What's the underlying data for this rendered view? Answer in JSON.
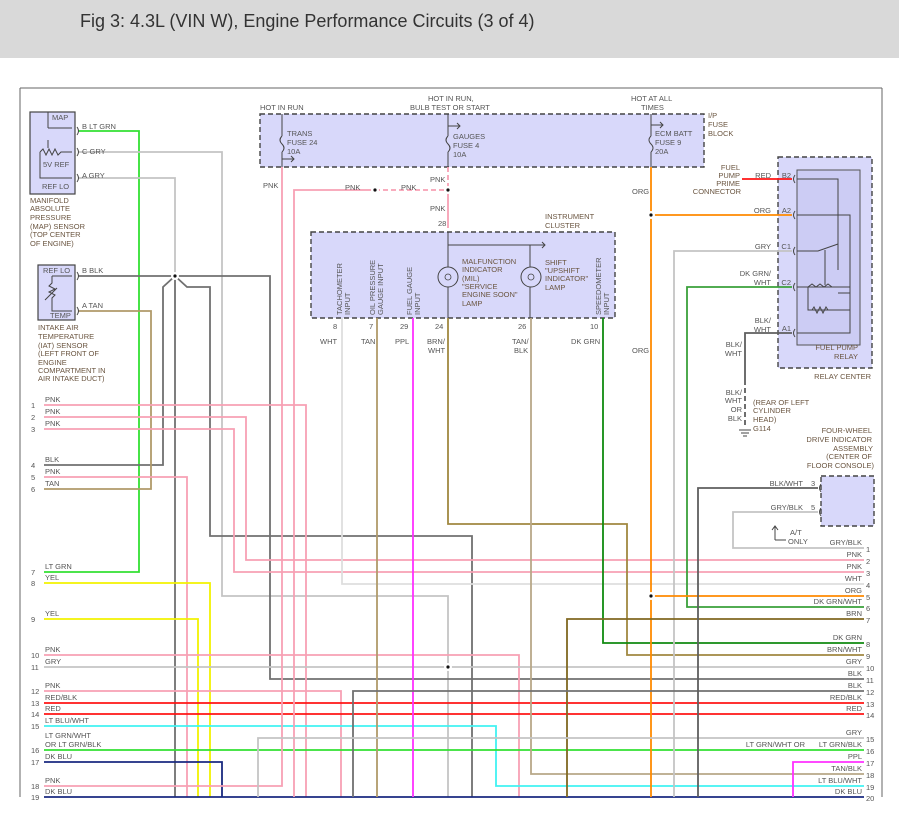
{
  "title": "Fig 3: 4.3L (VIN W), Engine Performance Circuits (3 of 4)",
  "wire_colors": {
    "PNK": "#f7a0b4",
    "LT GRN": "#33e033",
    "GRY": "#c4c4c4",
    "BLK": "#707070",
    "TAN": "#b09a6a",
    "YEL": "#f2f200",
    "RED": "#ff1414",
    "LT BLU/WHT": "#40f2f2",
    "DK BLU": "#1a2a80",
    "WHT": "#dedede",
    "PPL": "#ff30ff",
    "BRN/WHT": "#a08840",
    "TAN/BLK": "#b8a888",
    "DK GRN": "#108a10",
    "ORG": "#ff8a00",
    "DK GRN/WHT": "#3aa03a",
    "BRN": "#806820",
    "BLK/WHT": "#5e5e5e"
  },
  "fuse_block": {
    "hot_in_run": "HOT IN RUN",
    "hot_bulb_1": "HOT IN RUN,",
    "hot_bulb_2": "BULB TEST OR START",
    "hot_all_1": "HOT AT ALL",
    "hot_all_2": "TIMES",
    "name": [
      "I/P",
      "FUSE",
      "BLOCK"
    ],
    "fuses": [
      {
        "lines": [
          "TRANS",
          "FUSE 24",
          "10A"
        ]
      },
      {
        "lines": [
          "GAUGES",
          "FUSE 4",
          "10A"
        ]
      },
      {
        "lines": [
          "ECM BATT",
          "FUSE 9",
          "20A"
        ]
      }
    ]
  },
  "map_sensor": {
    "pins": {
      "map": "MAP",
      "ref5v": "5V REF",
      "reflo": "REF LO"
    },
    "wires": [
      "B  LT GRN",
      "C  GRY",
      "A  GRY"
    ],
    "name": [
      "MANIFOLD",
      "ABSOLUTE",
      "PRESSURE",
      "(MAP) SENSOR",
      "(TOP CENTER",
      "OF ENGINE)"
    ]
  },
  "iat_sensor": {
    "pins": {
      "reflo": "REF LO",
      "temp": "TEMP"
    },
    "wires": [
      "B  BLK",
      "A  TAN"
    ],
    "name": [
      "INTAKE AIR",
      "TEMPERATURE",
      "(IAT) SENSOR",
      "(LEFT FRONT OF",
      "ENGINE",
      "COMPARTMENT IN",
      "AIR INTAKE DUCT)"
    ]
  },
  "pnk_labels": [
    "PNK",
    "PNK",
    "PNK",
    "PNK",
    "PNK"
  ],
  "instrument_cluster": {
    "name": [
      "INSTRUMENT",
      "CLUSTER"
    ],
    "feed_pin": "28",
    "inputs": [
      [
        "TACHOMETER",
        "INPUT"
      ],
      [
        "OIL PRESSURE",
        "GAUGE INPUT"
      ],
      [
        "FUEL GAUGE",
        "INPUT"
      ],
      [
        "SPEEDOMETER",
        "INPUT"
      ]
    ],
    "mil": [
      "MALFUNCTION",
      "INDICATOR",
      "(MIL)",
      "\"SERVICE",
      "ENGINE SOON\"",
      "LAMP"
    ],
    "shift": [
      "SHIFT",
      "\"UPSHIFT",
      "INDICATOR\"",
      "LAMP"
    ],
    "pins": [
      "8",
      "7",
      "29",
      "24",
      "26",
      "10"
    ],
    "wire_labels": [
      "WHT",
      "TAN",
      "PPL",
      "BRN/",
      "WHT",
      "TAN/",
      "BLK",
      "DK GRN"
    ]
  },
  "org_labels": [
    "ORG",
    "ORG"
  ],
  "relay_center": {
    "prime": [
      "FUEL",
      "PUMP",
      "PRIME",
      "CONNECTOR"
    ],
    "pins": [
      {
        "pin": "B2",
        "wire": [
          "RED"
        ]
      },
      {
        "pin": "A2",
        "wire": [
          "ORG"
        ]
      },
      {
        "pin": "C1",
        "wire": [
          "GRY"
        ]
      },
      {
        "pin": "C2",
        "wire": [
          "DK GRN/",
          "WHT"
        ]
      },
      {
        "pin": "A1",
        "wire": [
          "BLK/",
          "WHT"
        ]
      }
    ],
    "relay": [
      "FUEL PUMP",
      "RELAY"
    ],
    "center": "RELAY CENTER"
  },
  "ground": {
    "wire1": [
      "BLK/",
      "WHT"
    ],
    "wire2": [
      "BLK/",
      "WHT",
      "OR",
      "BLK"
    ],
    "location": [
      "(REAR OF LEFT",
      "CYLINDER",
      "HEAD)"
    ],
    "id": "G114"
  },
  "fwd_assembly": {
    "name": [
      "FOUR-WHEEL",
      "DRIVE INDICATOR",
      "ASSEMBLY",
      "(CENTER OF",
      "FLOOR CONSOLE)"
    ],
    "pins": [
      {
        "wire": "BLK/WHT",
        "pin": "3"
      },
      {
        "wire": "GRY/BLK",
        "pin": "5"
      }
    ],
    "at_only": [
      "A/T",
      "ONLY"
    ]
  },
  "left_pins": [
    {
      "num": "1",
      "label": "PNK"
    },
    {
      "num": "2",
      "label": "PNK"
    },
    {
      "num": "3",
      "label": "PNK"
    },
    {
      "num": "4",
      "label": "BLK"
    },
    {
      "num": "5",
      "label": "PNK"
    },
    {
      "num": "6",
      "label": "TAN"
    },
    {
      "num": "7",
      "label": "LT GRN"
    },
    {
      "num": "8",
      "label": "YEL"
    },
    {
      "num": "9",
      "label": "YEL"
    },
    {
      "num": "10",
      "label": "PNK"
    },
    {
      "num": "11",
      "label": "GRY"
    },
    {
      "num": "12",
      "label": "PNK"
    },
    {
      "num": "13",
      "label": "RED/BLK"
    },
    {
      "num": "14",
      "label": "RED"
    },
    {
      "num": "15",
      "label": "LT BLU/WHT"
    },
    {
      "num": "16",
      "label": "LT GRN/WHT",
      "label2": "OR  LT GRN/BLK"
    },
    {
      "num": "17",
      "label": "DK BLU"
    },
    {
      "num": "18",
      "label": "PNK"
    },
    {
      "num": "19",
      "label": "DK BLU"
    }
  ],
  "right_pins": [
    {
      "num": "1",
      "label": "GRY/BLK"
    },
    {
      "num": "2",
      "label": "PNK"
    },
    {
      "num": "3",
      "label": "PNK"
    },
    {
      "num": "4",
      "label": "WHT"
    },
    {
      "num": "5",
      "label": "ORG"
    },
    {
      "num": "6",
      "label": "DK GRN/WHT"
    },
    {
      "num": "7",
      "label": "BRN"
    },
    {
      "num": "8",
      "label": "DK GRN"
    },
    {
      "num": "9",
      "label": "BRN/WHT"
    },
    {
      "num": "10",
      "label": "GRY"
    },
    {
      "num": "11",
      "label": "BLK"
    },
    {
      "num": "12",
      "label": "BLK"
    },
    {
      "num": "13",
      "label": "RED/BLK"
    },
    {
      "num": "14",
      "label": "RED"
    },
    {
      "num": "15",
      "label": "GRY"
    },
    {
      "num": "16",
      "label": "LT GRN/BLK",
      "label2": "LT GRN/WHT  OR"
    },
    {
      "num": "17",
      "label": "PPL"
    },
    {
      "num": "18",
      "label": "TAN/BLK"
    },
    {
      "num": "19",
      "label": "LT BLU/WHT"
    },
    {
      "num": "20",
      "label": "DK BLU"
    }
  ]
}
